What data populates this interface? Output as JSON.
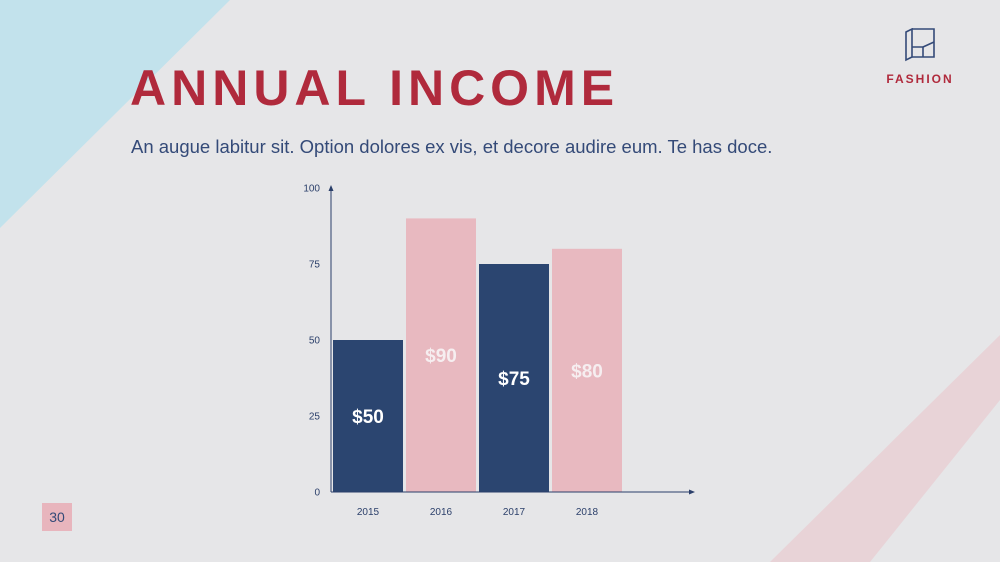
{
  "slide": {
    "title": "ANNUAL INCOME",
    "subtitle": "An augue labitur sit. Option dolores ex vis, et decore audire eum. Te has doce.",
    "page_number": "30"
  },
  "brand": {
    "name": "FASHION",
    "icon": "fashion-logo-icon"
  },
  "colors": {
    "title": "#b02a3c",
    "text": "#344a78",
    "bar_dark": "#2b4570",
    "bar_light": "#e8b9c0",
    "label_on_dark": "#ffffff",
    "label_on_light": "#f6eef0",
    "deco_blue": "#c2e2ec",
    "deco_pink": "#e8d3d7"
  },
  "chart_data": {
    "type": "bar",
    "categories": [
      "2015",
      "2016",
      "2017",
      "2018"
    ],
    "values": [
      50,
      90,
      75,
      80
    ],
    "data_labels": [
      "$50",
      "$90",
      "$75",
      "$80"
    ],
    "bar_colors": [
      "#2b4570",
      "#e8b9c0",
      "#2b4570",
      "#e8b9c0"
    ],
    "yticks": [
      "0",
      "25",
      "50",
      "75",
      "100"
    ],
    "ylim": [
      0,
      100
    ],
    "title": "",
    "xlabel": "",
    "ylabel": "",
    "grid": false,
    "legend": "none"
  }
}
